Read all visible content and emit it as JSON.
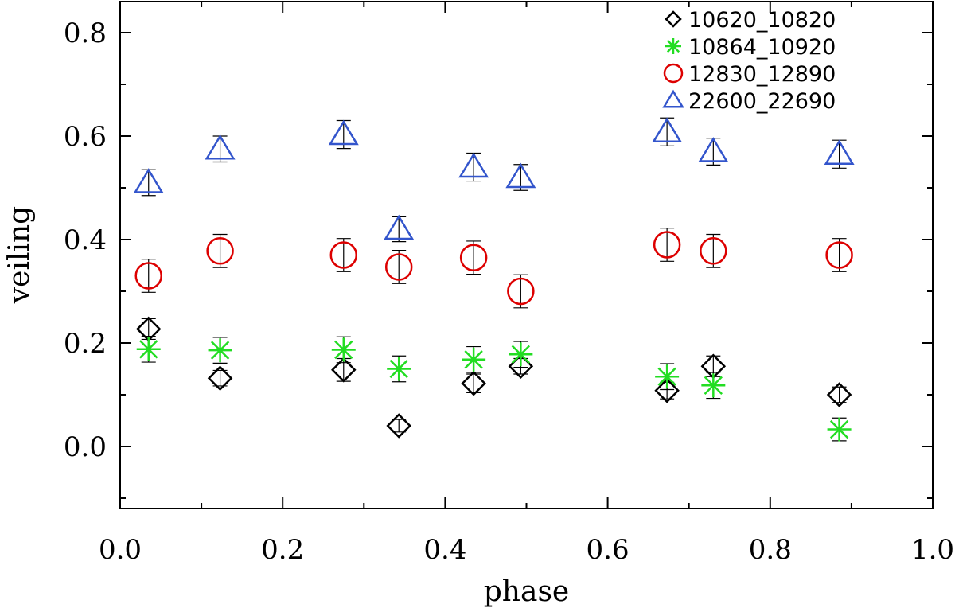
{
  "chart_data": {
    "type": "scatter",
    "title": "",
    "xlabel": "phase",
    "ylabel": "veiling",
    "xlim": [
      0.0,
      1.0
    ],
    "ylim": [
      -0.12,
      0.86
    ],
    "xticks": [
      0.0,
      0.2,
      0.4,
      0.6,
      0.8,
      1.0
    ],
    "xtick_labels": [
      "0.0",
      "0.2",
      "0.4",
      "0.6",
      "0.8",
      "1.0"
    ],
    "yticks": [
      0.0,
      0.2,
      0.4,
      0.6,
      0.8
    ],
    "ytick_labels": [
      "0.0",
      "0.2",
      "0.4",
      "0.6",
      "0.8"
    ],
    "grid": false,
    "legend_position": "top-right",
    "x": [
      0.035,
      0.123,
      0.275,
      0.343,
      0.435,
      0.493,
      0.673,
      0.73,
      0.885
    ],
    "series": [
      {
        "name": "10620_10820",
        "marker": "diamond",
        "color": "#000000",
        "values": [
          0.227,
          0.132,
          0.148,
          0.04,
          0.122,
          0.155,
          0.108,
          0.155,
          0.1
        ],
        "errors": [
          0.02,
          0.015,
          0.022,
          0.012,
          0.018,
          0.015,
          0.016,
          0.02,
          0.015
        ]
      },
      {
        "name": "10864_10920",
        "marker": "asterisk",
        "color": "#22dd22",
        "values": [
          0.188,
          0.186,
          0.187,
          0.15,
          0.168,
          0.178,
          0.135,
          0.118,
          0.033
        ],
        "errors": [
          0.025,
          0.025,
          0.025,
          0.025,
          0.025,
          0.025,
          0.025,
          0.025,
          0.022
        ]
      },
      {
        "name": "12830_12890",
        "marker": "circle",
        "color": "#dd0000",
        "values": [
          0.33,
          0.378,
          0.37,
          0.347,
          0.365,
          0.3,
          0.39,
          0.378,
          0.37
        ],
        "errors": [
          0.032,
          0.032,
          0.032,
          0.032,
          0.032,
          0.032,
          0.032,
          0.032,
          0.032
        ]
      },
      {
        "name": "22600_22690",
        "marker": "triangle",
        "color": "#3355cc",
        "values": [
          0.51,
          0.575,
          0.603,
          0.42,
          0.54,
          0.52,
          0.608,
          0.57,
          0.565
        ],
        "errors": [
          0.025,
          0.025,
          0.027,
          0.024,
          0.027,
          0.025,
          0.027,
          0.026,
          0.027
        ]
      }
    ]
  }
}
